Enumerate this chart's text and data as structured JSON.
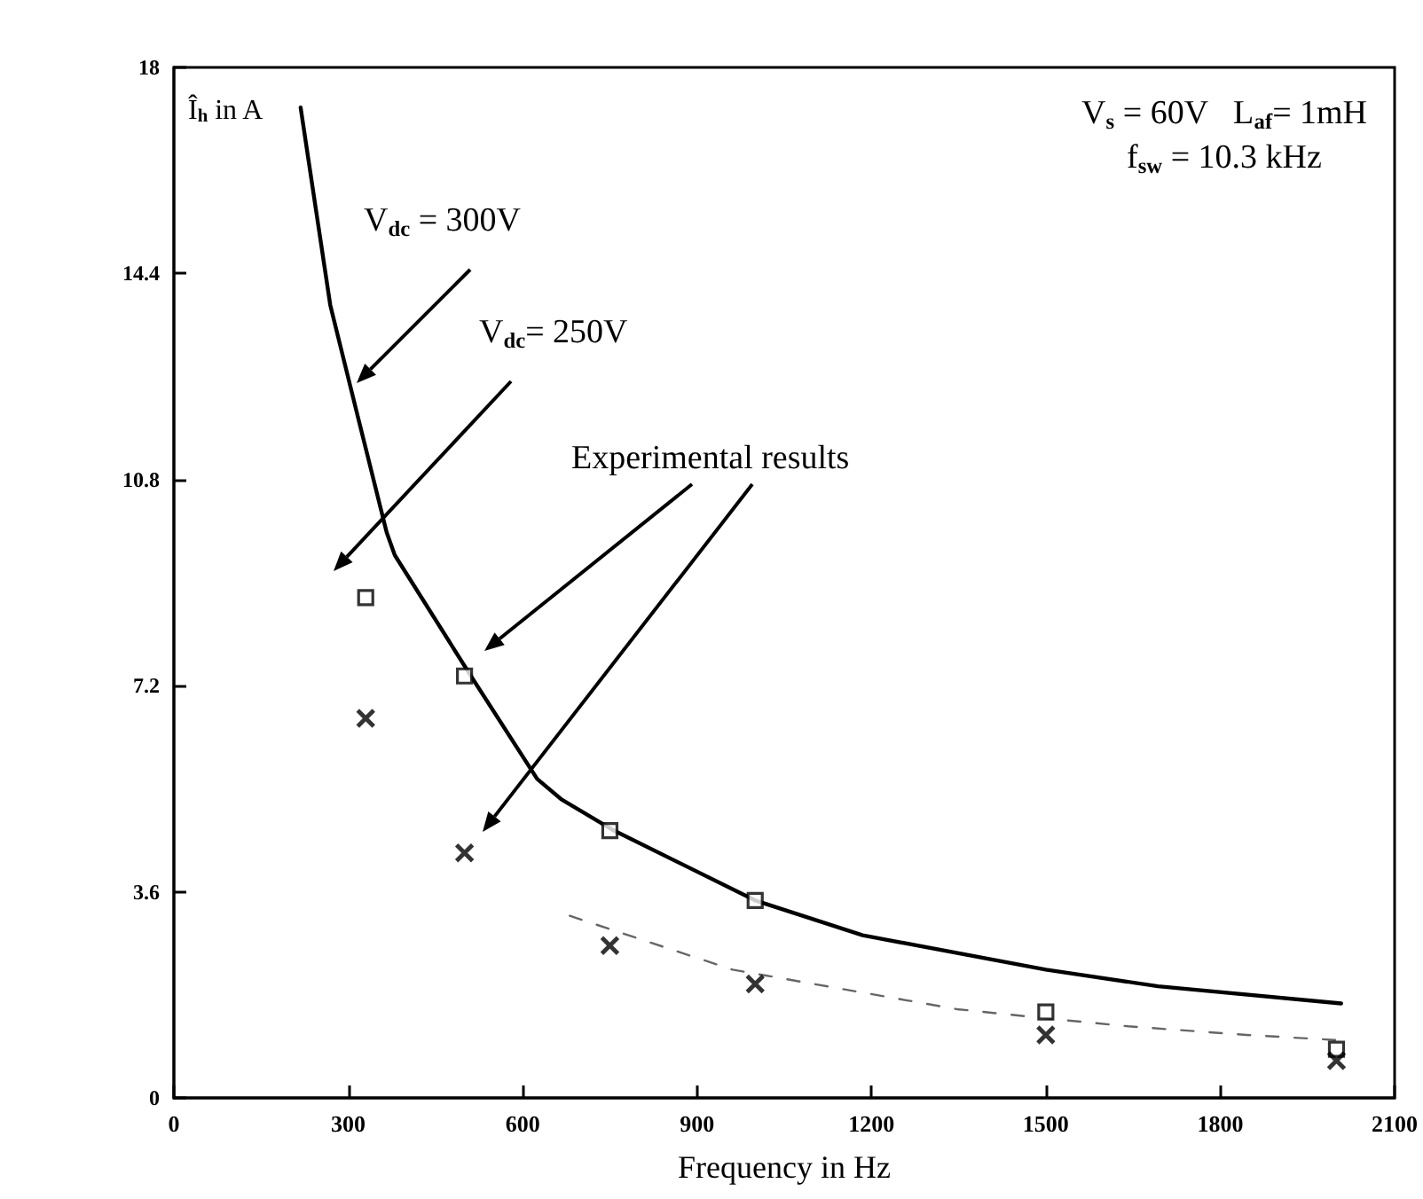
{
  "chart_data": {
    "type": "line",
    "xlabel": "Frequency in Hz",
    "ylabel": "Î$_{h}$ in A",
    "xlim": [
      0,
      2100
    ],
    "xticks": [
      0,
      300,
      600,
      900,
      1200,
      1500,
      1800,
      2100
    ],
    "ylim": [
      0,
      18
    ],
    "yticks": [
      0,
      3.6,
      7.2,
      10.8,
      14.4,
      18
    ],
    "series": [
      {
        "color": "#000000",
        "marker": "none",
        "line_style": "solid",
        "x": [
          218,
          269,
          315,
          366,
          380,
          511,
          625,
          666,
          757,
          1000,
          1185,
          1500,
          1693,
          2008
        ],
        "values": [
          17.3,
          13.85,
          11.96,
          9.88,
          9.48,
          7.37,
          5.57,
          5.22,
          4.67,
          3.45,
          2.84,
          2.24,
          1.95,
          1.65
        ]
      },
      {
        "color": "#666666",
        "marker": "none",
        "line_style": "dashed",
        "x": [
          681,
          961,
          1347,
          1490,
          1642,
          1845,
          2018
        ],
        "values": [
          3.18,
          2.24,
          1.55,
          1.4,
          1.25,
          1.1,
          1.0
        ]
      },
      {
        "type": "scatter",
        "color": "#000000",
        "marker": "square",
        "x": [
          330,
          500,
          750,
          1000,
          1500,
          2000
        ],
        "values": [
          8.74,
          7.37,
          4.67,
          3.45,
          1.5,
          0.85
        ]
      },
      {
        "type": "scatter",
        "color": "#000000",
        "marker": "cross",
        "x": [
          330,
          500,
          750,
          1000,
          1500,
          2000
        ],
        "values": [
          6.63,
          4.28,
          2.66,
          1.99,
          1.1,
          0.65
        ]
      }
    ],
    "annotations": [
      "V$_{dc}$ = 300V",
      "V$_{dc}$= 250V",
      "Experimental results",
      "V$_{s}$ = 60V   L$_{af}$= 1mH",
      "f$_{sw}$ = 10.3 kHz"
    ]
  }
}
